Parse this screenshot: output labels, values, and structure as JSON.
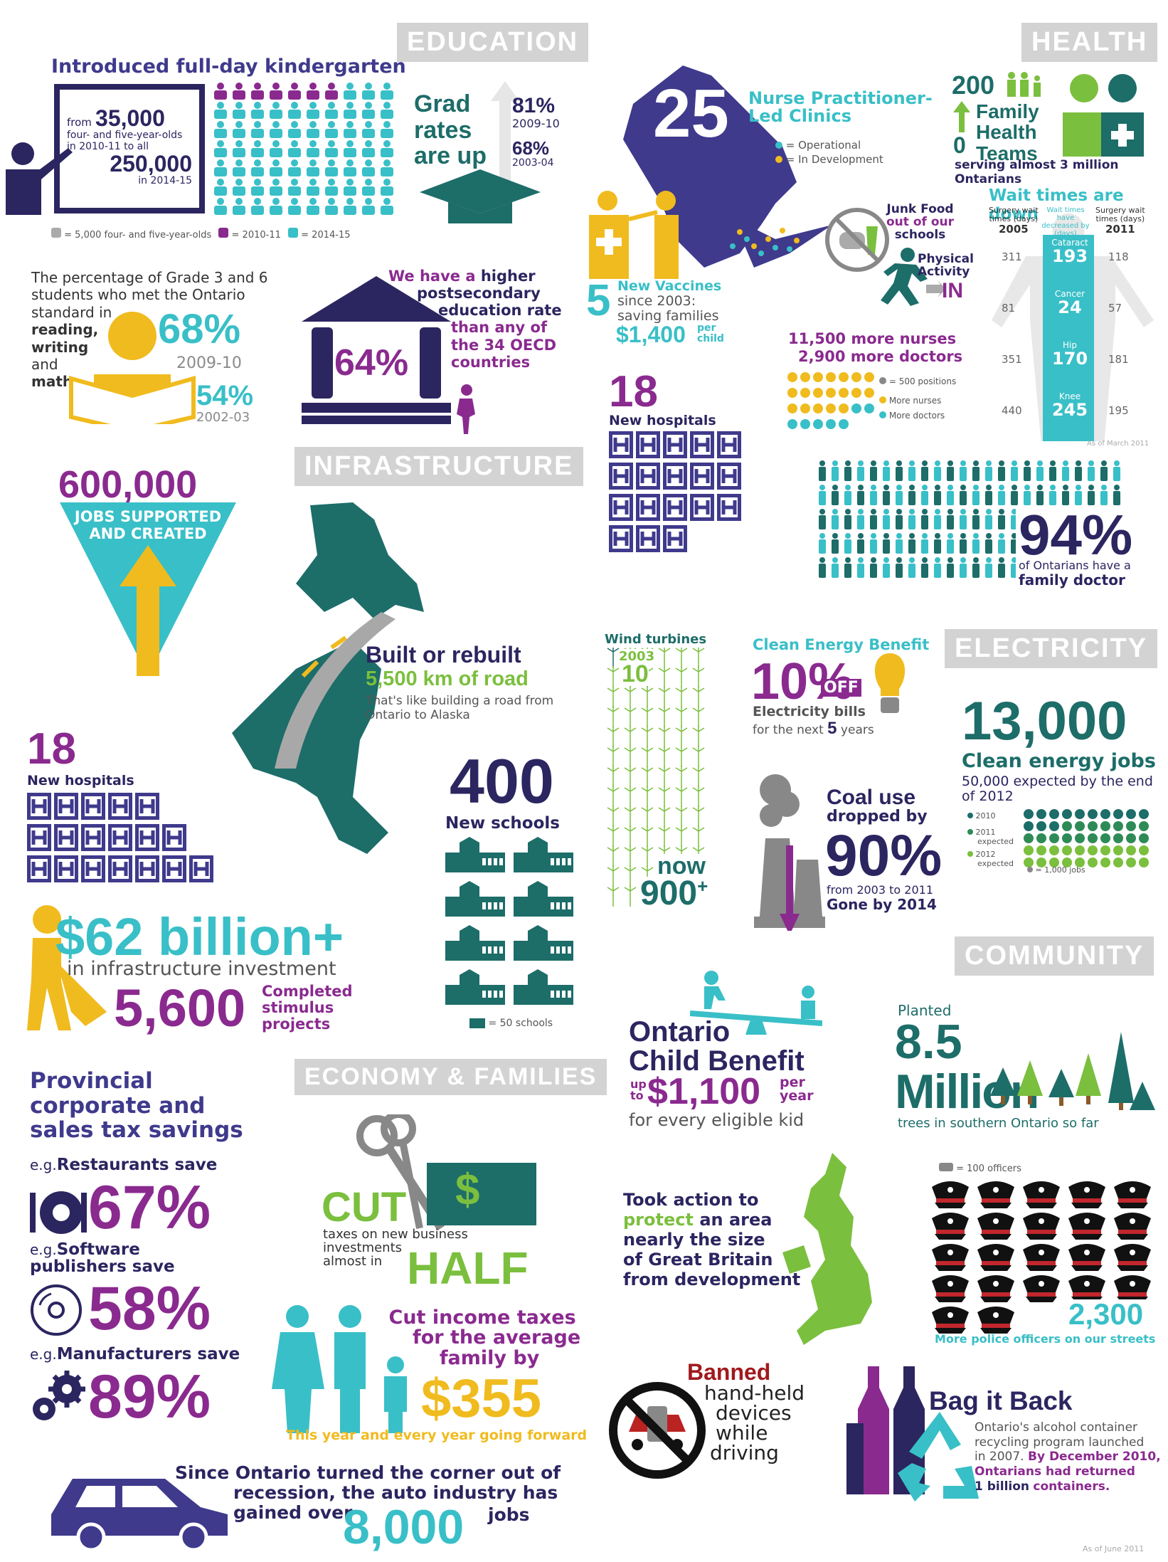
{
  "headers": {
    "education": "EDUCATION",
    "health": "HEALTH",
    "infrastructure": "INFRASTRUCTURE",
    "electricity": "ELECTRICITY",
    "community": "COMMUNITY",
    "economy": "ECONOMY & FAMILIES"
  },
  "kinder": {
    "title": "Introduced full-day kindergarten",
    "from": "from",
    "n1": "35,000",
    "desc1": "four- and five-year-olds",
    "desc2": "in 2010-11 to all",
    "n2": "250,000",
    "yr": "in 2014-15",
    "legend1": "= 5,000 four- and five-year-olds",
    "legend2": "= 2010-11",
    "legend3": "= 2014-15"
  },
  "grad": {
    "l1": "Grad",
    "l2": "rates",
    "l3": "are up",
    "p1": "81%",
    "y1": "2009-10",
    "p2": "68%",
    "y2": "2003-04"
  },
  "literacy": {
    "text1": "The percentage of Grade 3 and 6",
    "text2": "students who met the Ontario",
    "text3": "standard in",
    "w1": "reading,",
    "w2": "writing",
    "w3": "and",
    "w4": "math",
    "p1": "68%",
    "y1": "2009-10",
    "p2": "54%",
    "y2": "2002-03"
  },
  "postsec": {
    "l1": "We have a",
    "l1b": "higher",
    "l2": "postsecondary",
    "l3": "education rate",
    "l4": "than any of",
    "l5": "the 34 OECD",
    "l6": "countries",
    "pct": "64%"
  },
  "nurse": {
    "num": "25",
    "title1": "Nurse Practitioner-",
    "title2": "Led Clinics",
    "op": "= Operational",
    "dev": "= In Development"
  },
  "family": {
    "n1": "200",
    "t1": "Family",
    "t2": "Health",
    "n2": "0",
    "t3": "Teams",
    "sub": "serving almost 3 million Ontarians"
  },
  "wait": {
    "title": "Wait times are down",
    "h2005a": "Surgery wait",
    "h2005b": "times (days)",
    "h2005": "2005",
    "hmida": "Wait times have",
    "hmidb": "decreased by",
    "hmidc": "(days)",
    "h2011a": "Surgery wait",
    "h2011b": "times (days)",
    "h2011": "2011",
    "asof": "As of March 2011",
    "rows": [
      {
        "name": "Cataract",
        "left": "311",
        "dec": "193",
        "right": "118"
      },
      {
        "name": "Cancer",
        "left": "81",
        "dec": "24",
        "right": "57"
      },
      {
        "name": "Hip",
        "left": "351",
        "dec": "170",
        "right": "181"
      },
      {
        "name": "Knee",
        "left": "440",
        "dec": "245",
        "right": "195"
      }
    ]
  },
  "vaccines": {
    "num": "5",
    "t1": "New Vaccines",
    "t2": "since 2003:",
    "t3": "saving families",
    "amount": "$1,400",
    "per": "per",
    "child": "child"
  },
  "junk": {
    "t1": "Junk Food",
    "t2": "out of our",
    "t3": "schools",
    "p1": "Physical",
    "p2": "Activity",
    "p3": "IN"
  },
  "nurses": {
    "l1": "11,500 more nurses",
    "l2": "2,900 more doctors",
    "k1": "= 500 positions",
    "k2": "More nurses",
    "k3": "More doctors"
  },
  "hosp1": {
    "num": "18",
    "label": "New hospitals"
  },
  "doctor": {
    "pct": "94%",
    "t1": "of Ontarians have a",
    "t2": "family doctor"
  },
  "jobs": {
    "num": "600,000",
    "t1": "JOBS SUPPORTED",
    "t2": "AND CREATED"
  },
  "road": {
    "t1": "Built or rebuilt",
    "t2": "5,500 km of road",
    "t3": "That's like building a road from",
    "t4": "Ontario to Alaska"
  },
  "hosp2": {
    "num": "18",
    "label": "New hospitals"
  },
  "schools": {
    "num": "400",
    "label": "New schools",
    "legend": "= 50 schools"
  },
  "infra": {
    "amount": "$62 billion+",
    "sub": "in infrastructure investment",
    "num": "5,600",
    "c1": "Completed",
    "c2": "stimulus",
    "c3": "projects"
  },
  "wind": {
    "title": "Wind turbines",
    "y": "2003",
    "n1": "10",
    "now": "now",
    "n2": "900",
    "plus": "+"
  },
  "clean": {
    "title": "Clean Energy Benefit",
    "pct": "10%",
    "off": "OFF",
    "b1": "Electricity bills",
    "b2": "for the next",
    "yrs": "5",
    "b3": "years"
  },
  "coal": {
    "t1": "Coal use",
    "t2": "dropped by",
    "pct": "90%",
    "t3": "from 2003 to 2011",
    "t4": "Gone by 2014"
  },
  "cej": {
    "num": "13,000",
    "t1": "Clean energy jobs",
    "t2": "50,000 expected by the end",
    "t3": "of 2012",
    "l1": "2010",
    "l2a": "2011",
    "l2b": "expected",
    "l3a": "2012",
    "l3b": "expected",
    "l4": "= 1,000 jobs"
  },
  "ocb": {
    "t1": "Ontario",
    "t2": "Child Benefit",
    "up": "up",
    "to": "to",
    "amount": "$1,100",
    "per": "per",
    "year": "year",
    "t3": "for every eligible kid"
  },
  "trees": {
    "t1": "Planted",
    "num": "8.5",
    "mil": "Million",
    "sub": "trees in southern Ontario so far"
  },
  "protect": {
    "l1": "Took action to",
    "l2a": "protect",
    "l2b": "an area",
    "l3": "nearly the size",
    "l4": "of Great Britain",
    "l5": "from development"
  },
  "police": {
    "legend": "= 100 officers",
    "num": "2,300",
    "sub": "More police officers on our streets"
  },
  "banned": {
    "t1": "Banned",
    "t2": "hand-held",
    "t3": "devices",
    "t4": "while",
    "t5": "driving"
  },
  "bag": {
    "title": "Bag it Back",
    "t1": "Ontario's alcohol container",
    "t2": "recycling program launched",
    "t3": "in 2007.",
    "t3b": "By December 2010,",
    "t4": "Ontarians had returned",
    "t5": "1 billion",
    "t5b": "containers."
  },
  "tax": {
    "t1": "Provincial",
    "t2": "corporate and",
    "t3": "sales tax savings",
    "eg": "e.g.",
    "r": "Restaurants save",
    "rp": "67%",
    "s1": "Software",
    "s2": "publishers save",
    "sp": "58%",
    "m": "Manufacturers save",
    "mp": "89%"
  },
  "cut": {
    "cut": "CUT",
    "dollar": "$",
    "t1": "taxes on new business",
    "t2": "investments",
    "t3": "almost in",
    "half": "HALF"
  },
  "income": {
    "t1": "Cut income taxes",
    "t2": "for the average",
    "t3": "family by",
    "amount": "$355",
    "sub": "This year and every year going forward"
  },
  "auto": {
    "t1": "Since Ontario turned the corner out of",
    "t2": "recession, the auto industry has",
    "t3": "gained over",
    "num": "8,000",
    "jobs": "jobs"
  },
  "footer": {
    "asof": "As of June 2011"
  }
}
